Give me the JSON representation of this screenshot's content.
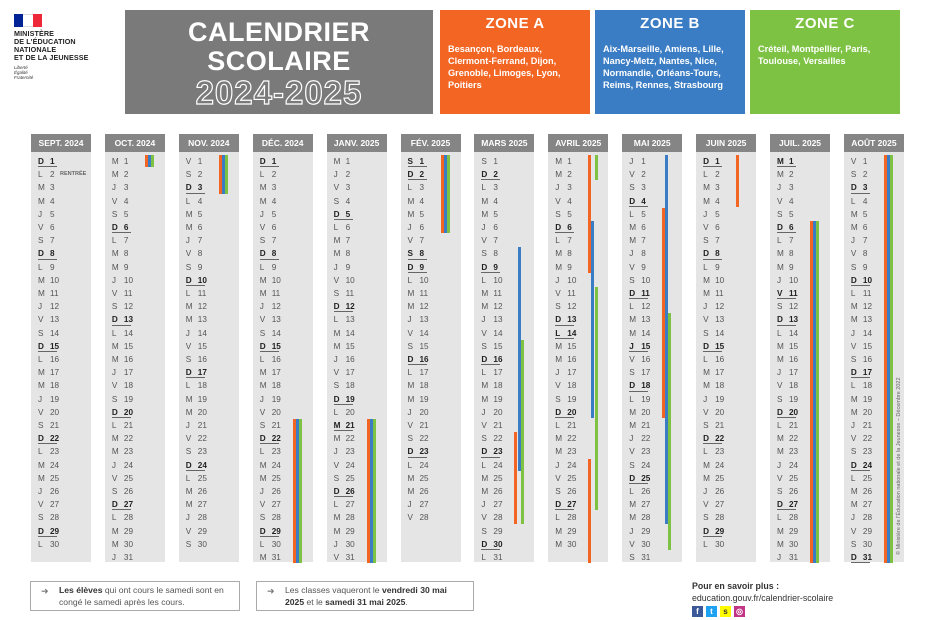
{
  "ministry": {
    "lines": [
      "MINISTÈRE",
      "DE L'ÉDUCATION",
      "NATIONALE",
      "ET DE LA JEUNESSE"
    ],
    "motto": [
      "Liberté",
      "Égalité",
      "Fraternité"
    ]
  },
  "title": {
    "line1": "CALENDRIER",
    "line2": "SCOLAIRE",
    "year": "2024-2025"
  },
  "zones": [
    {
      "name": "ZONE A",
      "color": "#f26522",
      "cities": "Besançon, Bordeaux, Clermont-Ferrand, Dijon, Grenoble, Limoges, Lyon, Poitiers"
    },
    {
      "name": "ZONE B",
      "color": "#3b7dc4",
      "cities": "Aix-Marseille, Amiens, Lille, Nancy-Metz, Nantes, Nice, Normandie, Orléans-Tours, Reims, Rennes, Strasbourg"
    },
    {
      "name": "ZONE C",
      "color": "#7dc242",
      "cities": "Créteil, Montpellier, Paris, Toulouse, Versailles"
    }
  ],
  "months": [
    {
      "name": "SEPT. 2024",
      "letters": "DLMMJVSDLMMJVSDLMMJVSDLMMJVSDL",
      "extra": {
        "day": 2,
        "text": "RENTRÉE"
      }
    },
    {
      "name": "OCT. 2024",
      "letters": "MMJVSDLMMJVSDLMMJVSDLMMJVSDLMMJ"
    },
    {
      "name": "NOV. 2024",
      "letters": "VSDLMMJVSDLMMJVSDLMMJVSDLMMJVS"
    },
    {
      "name": "DÉC. 2024",
      "letters": "DLMMJVSDLMMJVSDLMMJVSDLMMJVSDLM"
    },
    {
      "name": "JANV. 2025",
      "letters": "MJVSDLMMJVSDLMMJVSDLMMJVSDLMMJV"
    },
    {
      "name": "FÉV. 2025",
      "letters": "SDLMMJVSDLMMJVSDLMMJVSDLMMJV"
    },
    {
      "name": "MARS 2025",
      "letters": "SDLMMJVSDLMMJVSDLMMJVSDLMMJVSDL"
    },
    {
      "name": "AVRIL 2025",
      "letters": "MMJVSDLMMJVSDLMMJVSDLMMJVSDLMM"
    },
    {
      "name": "MAI 2025",
      "letters": "JVSDLMMJVSDLMMJVSDLMMJVSDLMMJVS"
    },
    {
      "name": "JUIN 2025",
      "letters": "DLMMJVSDLMMJVSDLMMJVSDLMMJVSDL"
    },
    {
      "name": "JUIL. 2025",
      "letters": "MMJVSDLMMJVSDLMMJVSDLMMJVSDLMMJ"
    },
    {
      "name": "AOÛT 2025",
      "letters": "VSDLMMJVSDLMMJVSDLMMJVSDLMMJVSD"
    }
  ],
  "holidays": {
    "9": [
      1
    ],
    "10": [
      1,
      11
    ],
    "4": [
      21
    ],
    "5": [
      1,
      8,
      29
    ],
    "6": [
      9
    ],
    "7": [
      14
    ],
    "8": [
      15
    ]
  },
  "vacations": [
    {
      "month": 1,
      "zone": "C",
      "from": 1,
      "to": 1
    },
    {
      "month": 1,
      "zone": "B",
      "from": 1,
      "to": 1
    },
    {
      "month": 1,
      "zone": "A",
      "from": 1,
      "to": 1
    },
    {
      "month": 2,
      "zone": "A",
      "from": 1,
      "to": 3
    },
    {
      "month": 2,
      "zone": "B",
      "from": 1,
      "to": 3
    },
    {
      "month": 2,
      "zone": "C",
      "from": 1,
      "to": 3
    },
    {
      "month": 3,
      "zone": "A",
      "from": 21,
      "to": 31
    },
    {
      "month": 3,
      "zone": "B",
      "from": 21,
      "to": 31
    },
    {
      "month": 3,
      "zone": "C",
      "from": 21,
      "to": 31
    },
    {
      "month": 4,
      "zone": "A",
      "from": 21,
      "to": 31
    },
    {
      "month": 4,
      "zone": "B",
      "from": 21,
      "to": 31
    },
    {
      "month": 4,
      "zone": "C",
      "from": 21,
      "to": 31
    },
    {
      "month": 5,
      "zone": "A",
      "from": 1,
      "to": 6
    },
    {
      "month": 5,
      "zone": "B",
      "from": 1,
      "to": 6
    },
    {
      "month": 5,
      "zone": "C",
      "from": 1,
      "to": 6
    },
    {
      "month": 5,
      "zone": "A",
      "from": 1,
      "to": 6
    },
    {
      "month": 6,
      "zone": "B",
      "from": 8,
      "to": 24
    },
    {
      "month": 6,
      "zone": "C",
      "from": 15,
      "to": 28
    },
    {
      "month": 6,
      "zone": "A",
      "from": 22,
      "to": 28
    },
    {
      "month": 7,
      "zone": "A",
      "from": 1,
      "to": 9
    },
    {
      "month": 7,
      "zone": "C",
      "from": 1,
      "to": 2
    },
    {
      "month": 7,
      "zone": "B",
      "from": 6,
      "to": 20
    },
    {
      "month": 7,
      "zone": "C",
      "from": 11,
      "to": 27
    },
    {
      "month": 7,
      "zone": "A",
      "from": 24,
      "to": 31
    },
    {
      "month": 8,
      "zone": "A",
      "from": 5,
      "to": 20
    },
    {
      "month": 8,
      "zone": "B",
      "from": 1,
      "to": 28
    },
    {
      "month": 8,
      "zone": "C",
      "from": 13,
      "to": 30
    },
    {
      "month": 9,
      "zone": "A",
      "from": 1,
      "to": 4
    },
    {
      "month": 10,
      "zone": "A",
      "from": 6,
      "to": 31
    },
    {
      "month": 10,
      "zone": "B",
      "from": 6,
      "to": 31
    },
    {
      "month": 10,
      "zone": "C",
      "from": 6,
      "to": 31
    },
    {
      "month": 11,
      "zone": "A",
      "from": 1,
      "to": 31
    },
    {
      "month": 11,
      "zone": "B",
      "from": 1,
      "to": 31
    },
    {
      "month": 11,
      "zone": "C",
      "from": 1,
      "to": 31
    }
  ],
  "notes": {
    "left_bold": "Les élèves",
    "left_rest": " qui ont cours le samedi sont en congé le samedi après les cours.",
    "right_start": "Les classes vaqueront le ",
    "right_bold1": "vendredi 30 mai 2025",
    "right_mid": " et le ",
    "right_bold2": "samedi 31 mai 2025",
    "right_end": "."
  },
  "more": {
    "label": "Pour en savoir plus :",
    "url": "education.gouv.fr/calendrier-scolaire"
  },
  "social": [
    {
      "name": "facebook-icon",
      "glyph": "f",
      "color": "#3b5998"
    },
    {
      "name": "twitter-icon",
      "glyph": "t",
      "color": "#1da1f2"
    },
    {
      "name": "snapchat-icon",
      "glyph": "s",
      "color": "#fffc00"
    },
    {
      "name": "instagram-icon",
      "glyph": "◎",
      "color": "#c13584"
    }
  ],
  "credit": "© Ministère de l'Éducation nationale et de la Jeunesse – Décembre 2022"
}
